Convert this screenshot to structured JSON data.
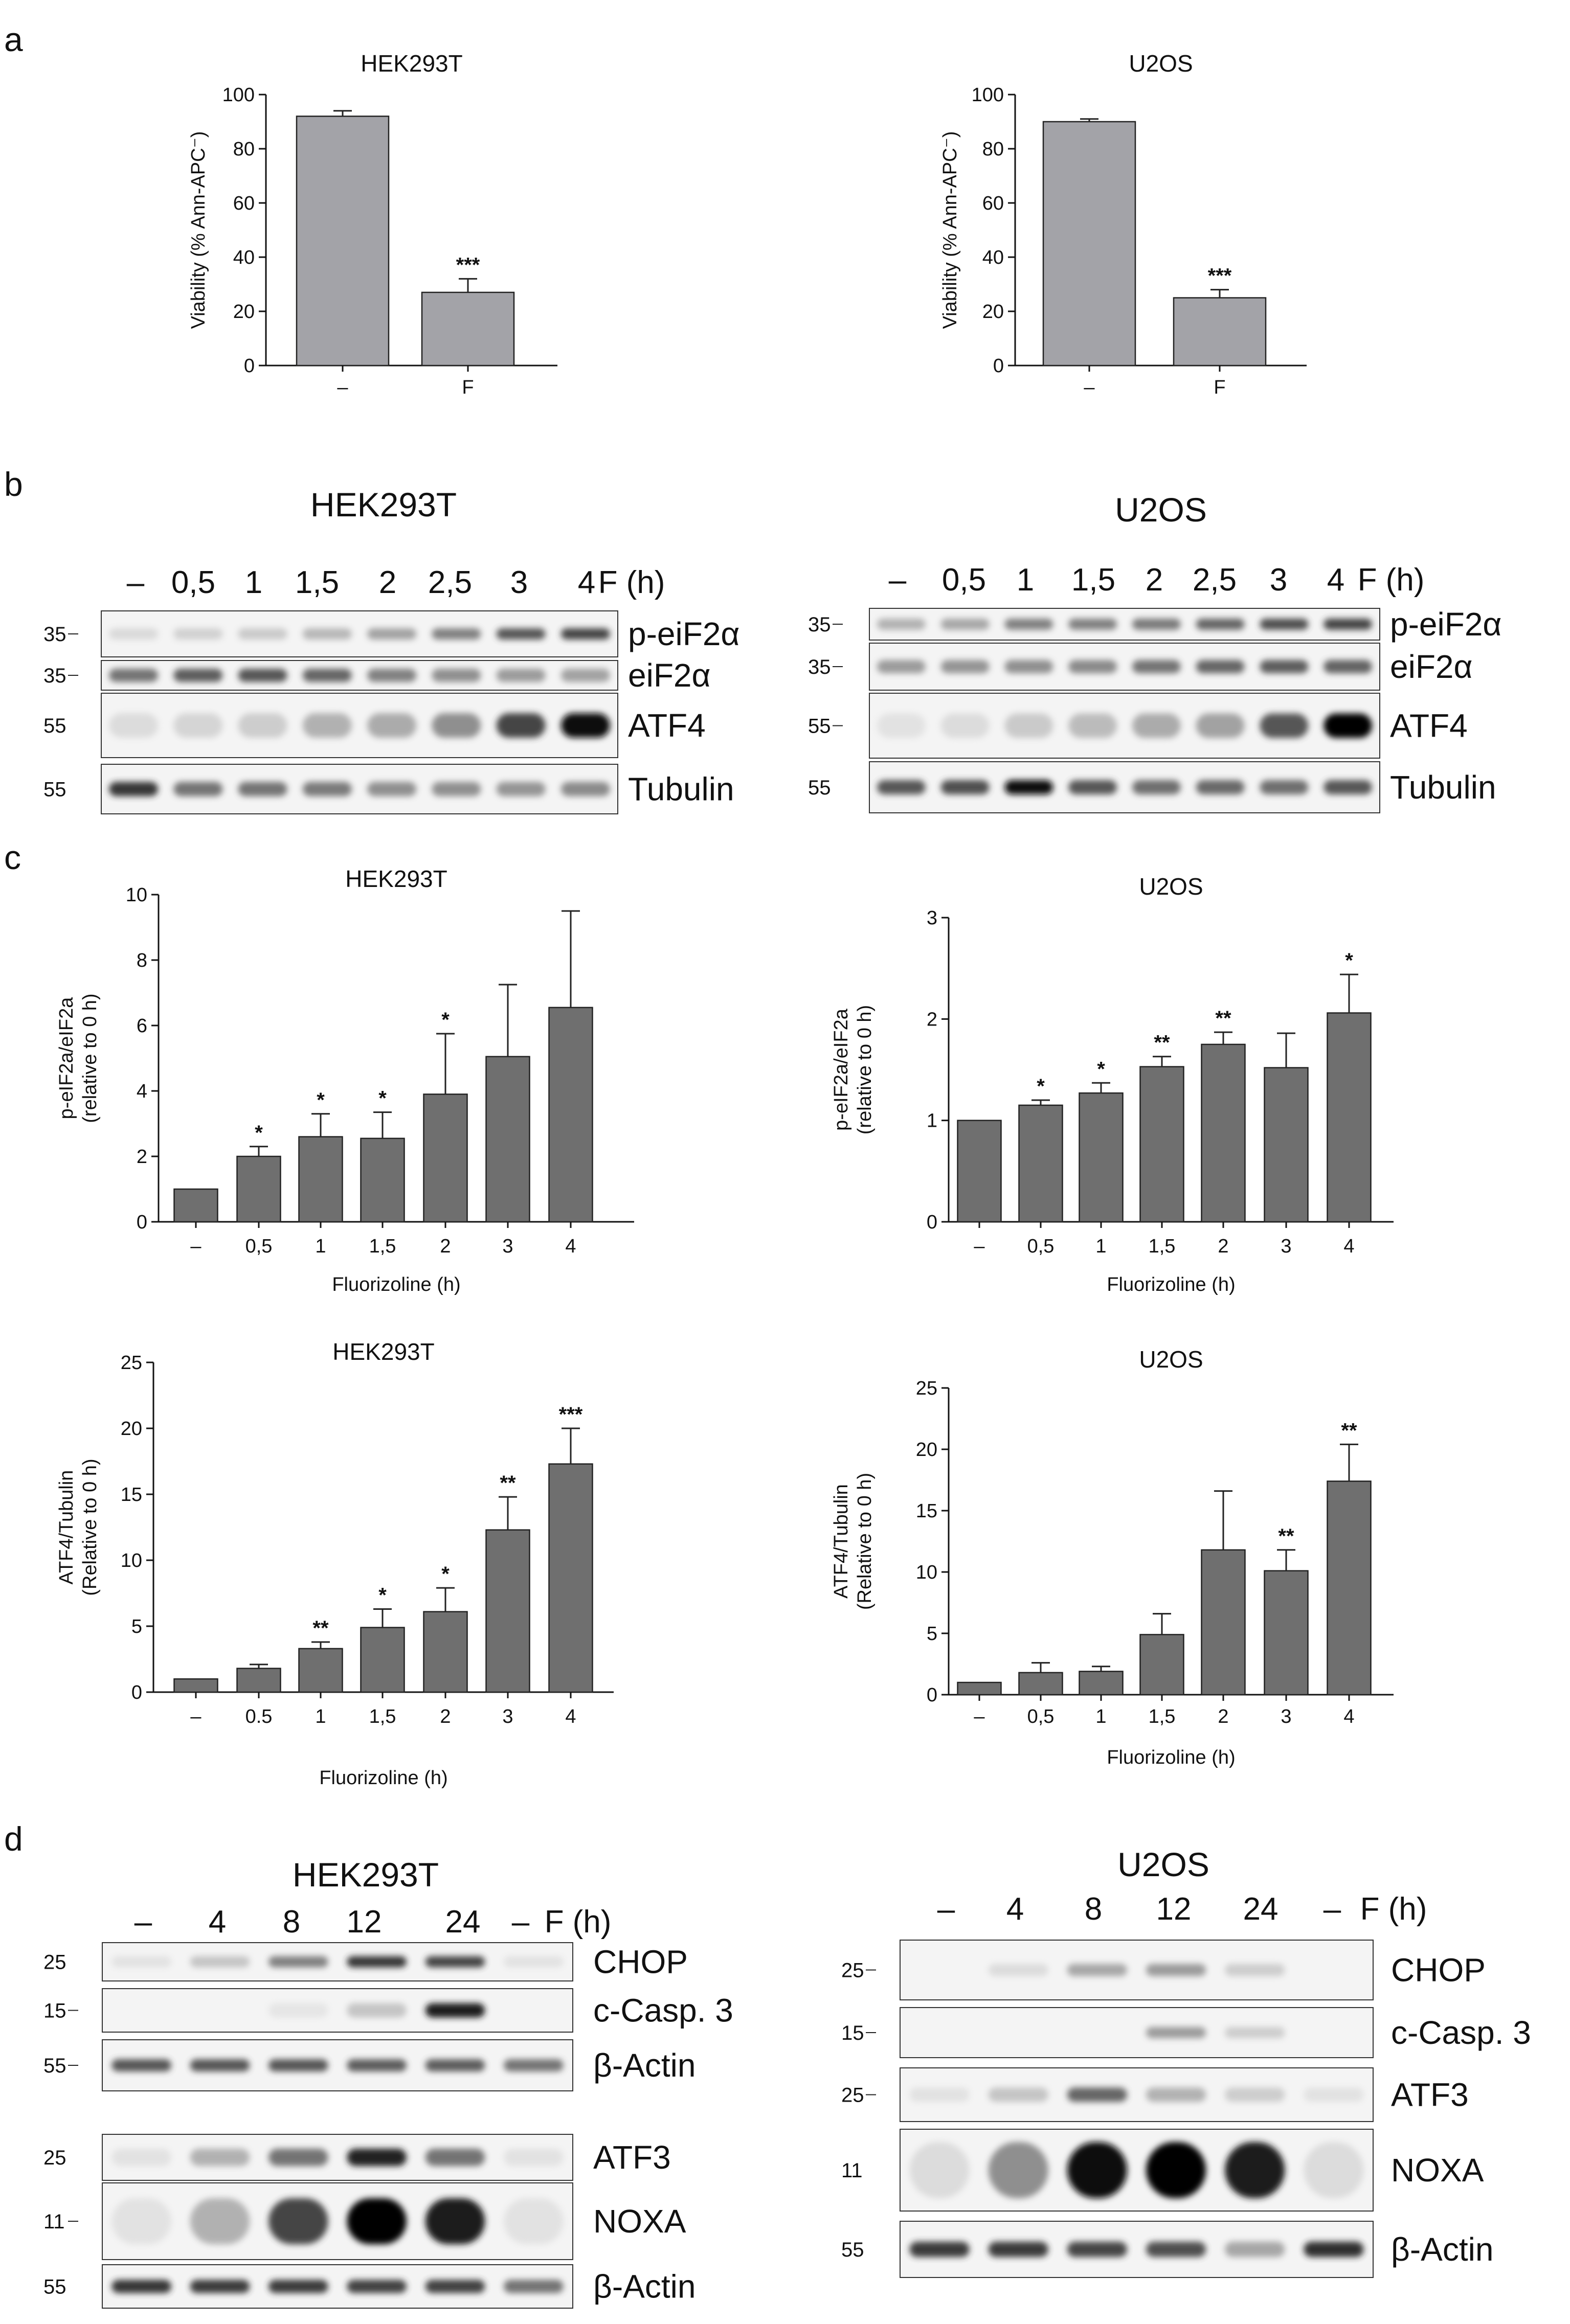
{
  "panels": {
    "a": "a",
    "b": "b",
    "c": "c",
    "d": "d"
  },
  "chart_data": [
    {
      "id": "a1",
      "type": "bar",
      "title": "HEK293T",
      "panel": "a",
      "categories": [
        "–",
        "F"
      ],
      "values": [
        92,
        27
      ],
      "errors": [
        2,
        5
      ],
      "significance": [
        "",
        "***"
      ],
      "ylabel": "Viability (% Ann-APC⁻)",
      "xlabel": "",
      "ylim": [
        0,
        100
      ],
      "yticks": [
        0,
        20,
        40,
        60,
        80,
        100
      ],
      "ytick_labels": [
        "0",
        "20",
        "40",
        "60",
        "80",
        "100"
      ]
    },
    {
      "id": "a2",
      "type": "bar",
      "title": "U2OS",
      "panel": "a",
      "categories": [
        "–",
        "F"
      ],
      "values": [
        90,
        25
      ],
      "errors": [
        1,
        3
      ],
      "significance": [
        "",
        "***"
      ],
      "ylabel": "Viability (% Ann-APC⁻)",
      "xlabel": "",
      "ylim": [
        0,
        100
      ],
      "yticks": [
        0,
        20,
        40,
        60,
        80,
        100
      ],
      "ytick_labels": [
        "0",
        "20",
        "40",
        "60",
        "80",
        "100"
      ]
    },
    {
      "id": "c1",
      "type": "bar",
      "title": "HEK293T",
      "panel": "c",
      "categories": [
        "–",
        "0,5",
        "1",
        "1,5",
        "2",
        "3",
        "4"
      ],
      "values": [
        1,
        2.0,
        2.6,
        2.55,
        3.9,
        5.05,
        6.55
      ],
      "errors": [
        0,
        0.3,
        0.7,
        0.8,
        1.85,
        2.2,
        2.95
      ],
      "significance": [
        "",
        "*",
        "*",
        "*",
        "*",
        "",
        ""
      ],
      "ylabel": "p-eIF2a/eIF2a (relative to 0 h)",
      "xlabel": "Fluorizoline (h)",
      "ylim": [
        0,
        10
      ],
      "yticks": [
        0,
        2,
        4,
        6,
        8,
        10
      ],
      "ytick_labels": [
        "0",
        "2",
        "4",
        "6",
        "8",
        "10"
      ]
    },
    {
      "id": "c2",
      "type": "bar",
      "title": "U2OS",
      "panel": "c",
      "categories": [
        "–",
        "0,5",
        "1",
        "1,5",
        "2",
        "3",
        "4"
      ],
      "values": [
        1,
        1.15,
        1.27,
        1.53,
        1.75,
        1.52,
        2.06
      ],
      "errors": [
        0,
        0.05,
        0.1,
        0.1,
        0.12,
        0.34,
        0.38
      ],
      "significance": [
        "",
        "*",
        "*",
        "**",
        "**",
        "",
        "*"
      ],
      "ylabel": "p-eIF2a/eIF2a (relative to 0 h)",
      "xlabel": "Fluorizoline (h)",
      "ylim": [
        0,
        3
      ],
      "yticks": [
        0,
        1,
        2,
        3
      ],
      "ytick_labels": [
        "0",
        "1",
        "2",
        "3"
      ]
    },
    {
      "id": "c3",
      "type": "bar",
      "title": "HEK293T",
      "panel": "c",
      "categories": [
        "–",
        "0.5",
        "1",
        "1,5",
        "2",
        "3",
        "4"
      ],
      "values": [
        1,
        1.8,
        3.3,
        4.9,
        6.1,
        12.3,
        17.3
      ],
      "errors": [
        0,
        0.3,
        0.5,
        1.4,
        1.8,
        2.5,
        2.7
      ],
      "significance": [
        "",
        "",
        "**",
        "*",
        "*",
        "**",
        "***"
      ],
      "ylabel": "ATF4/Tubulin (Relative to 0 h)",
      "xlabel": "Fluorizoline (h)",
      "ylim": [
        0,
        25
      ],
      "yticks": [
        0,
        5,
        10,
        15,
        20,
        25
      ],
      "ytick_labels": [
        "0",
        "5",
        "10",
        "15",
        "20",
        "25"
      ]
    },
    {
      "id": "c4",
      "type": "bar",
      "title": "U2OS",
      "panel": "c",
      "categories": [
        "–",
        "0,5",
        "1",
        "1,5",
        "2",
        "3",
        "4"
      ],
      "values": [
        1,
        1.8,
        1.9,
        4.9,
        11.8,
        10.1,
        17.4
      ],
      "errors": [
        0,
        0.8,
        0.4,
        1.7,
        4.8,
        1.7,
        3.0
      ],
      "significance": [
        "",
        "",
        "",
        "",
        "",
        "**",
        "**"
      ],
      "ylabel": "ATF4/Tubulin (Relative to 0 h)",
      "xlabel": "Fluorizoline (h)",
      "ylim": [
        0,
        25
      ],
      "yticks": [
        0,
        5,
        10,
        15,
        20,
        25
      ],
      "ytick_labels": [
        "0",
        "5",
        "10",
        "15",
        "20",
        "25"
      ]
    }
  ],
  "blots": {
    "b_hek": {
      "title": "HEK293T",
      "lanes": [
        "–",
        "0,5",
        "1",
        "1,5",
        "2",
        "2,5",
        "3",
        "4"
      ],
      "condition": "F (h)",
      "rows": [
        {
          "protein": "p-eiF2α",
          "mw": "35",
          "intensity": [
            0.12,
            0.18,
            0.22,
            0.32,
            0.42,
            0.55,
            0.7,
            0.75
          ]
        },
        {
          "protein": "eiF2α",
          "mw": "35",
          "intensity": [
            0.6,
            0.68,
            0.7,
            0.65,
            0.55,
            0.5,
            0.45,
            0.42
          ]
        },
        {
          "protein": "ATF4",
          "mw": "55",
          "intensity": [
            0.1,
            0.15,
            0.2,
            0.35,
            0.38,
            0.5,
            0.75,
            0.98
          ]
        },
        {
          "protein": "Tubulin",
          "mw": "55",
          "intensity": [
            0.8,
            0.6,
            0.6,
            0.58,
            0.5,
            0.5,
            0.48,
            0.52
          ]
        }
      ]
    },
    "b_u2os": {
      "title": "U2OS",
      "lanes": [
        "–",
        "0,5",
        "1",
        "1,5",
        "2",
        "2,5",
        "3",
        "4"
      ],
      "condition": "F (h)",
      "rows": [
        {
          "protein": "p-eiF2α",
          "mw": "35",
          "intensity": [
            0.35,
            0.4,
            0.55,
            0.55,
            0.58,
            0.65,
            0.72,
            0.75
          ]
        },
        {
          "protein": "eiF2α",
          "mw": "35",
          "intensity": [
            0.45,
            0.48,
            0.5,
            0.52,
            0.6,
            0.65,
            0.68,
            0.66
          ]
        },
        {
          "protein": "ATF4",
          "mw": "55",
          "intensity": [
            0.05,
            0.1,
            0.22,
            0.3,
            0.38,
            0.42,
            0.7,
            1.0
          ]
        },
        {
          "protein": "Tubulin",
          "mw": "55",
          "intensity": [
            0.7,
            0.72,
            0.95,
            0.7,
            0.62,
            0.64,
            0.62,
            0.7
          ]
        }
      ]
    },
    "d_hek": {
      "title": "HEK293T",
      "lanes": [
        "–",
        "4",
        "8",
        "12",
        "24",
        "–"
      ],
      "condition": "F (h)",
      "rows": [
        {
          "protein": "CHOP",
          "mw": "25",
          "intensity": [
            0.05,
            0.25,
            0.55,
            0.8,
            0.75,
            0.05
          ]
        },
        {
          "protein": "c-Casp. 3",
          "mw": "15",
          "intensity": [
            0.0,
            0.0,
            0.02,
            0.25,
            0.9,
            0.0
          ]
        },
        {
          "protein": "β-Actin",
          "mw": "55",
          "intensity": [
            0.7,
            0.7,
            0.7,
            0.68,
            0.68,
            0.6
          ]
        },
        {
          "protein": "ATF3",
          "mw": "25",
          "intensity": [
            0.05,
            0.35,
            0.6,
            0.85,
            0.6,
            0.05
          ]
        },
        {
          "protein": "NOXA",
          "mw": "11",
          "intensity": [
            0.05,
            0.35,
            0.75,
            1.0,
            0.9,
            0.05
          ]
        },
        {
          "protein": "β-Actin",
          "mw": "55",
          "intensity": [
            0.8,
            0.78,
            0.78,
            0.76,
            0.76,
            0.6
          ]
        }
      ]
    },
    "d_u2os": {
      "title": "U2OS",
      "lanes": [
        "–",
        "4",
        "8",
        "12",
        "24",
        "–"
      ],
      "condition": "F (h)",
      "rows": [
        {
          "protein": "CHOP",
          "mw": "25",
          "intensity": [
            0.0,
            0.1,
            0.4,
            0.45,
            0.2,
            0.0
          ]
        },
        {
          "protein": "c-Casp. 3",
          "mw": "15",
          "intensity": [
            0.0,
            0.0,
            0.0,
            0.45,
            0.2,
            0.0
          ]
        },
        {
          "protein": "ATF3",
          "mw": "25",
          "intensity": [
            0.05,
            0.25,
            0.65,
            0.35,
            0.2,
            0.05
          ]
        },
        {
          "protein": "NOXA",
          "mw": "11",
          "intensity": [
            0.1,
            0.5,
            0.95,
            1.0,
            0.9,
            0.1
          ]
        },
        {
          "protein": "β-Actin",
          "mw": "55",
          "intensity": [
            0.78,
            0.78,
            0.75,
            0.72,
            0.4,
            0.82
          ]
        }
      ]
    }
  }
}
